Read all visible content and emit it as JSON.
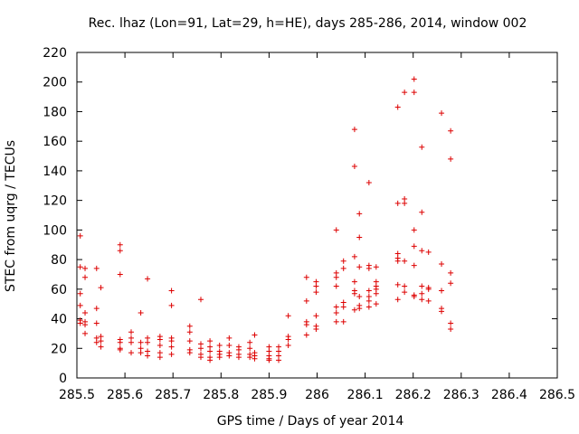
{
  "chart_data": {
    "type": "scatter",
    "title": "Rec. lhaz (Lon=91, Lat=29, h=HE), days 285-286, 2014, window 002",
    "xlabel": "GPS time / Days of year 2014",
    "ylabel": "STEC from uqrg / TECUs",
    "xlim": [
      285.5,
      286.5
    ],
    "ylim": [
      0,
      220
    ],
    "x_ticks": [
      "285.5",
      "285.6",
      "285.7",
      "285.8",
      "285.9",
      "286",
      "286.1",
      "286.2",
      "286.3",
      "286.4",
      "286.5"
    ],
    "y_ticks": [
      "0",
      "20",
      "40",
      "60",
      "80",
      "100",
      "120",
      "140",
      "160",
      "180",
      "200",
      "220"
    ],
    "grid": false,
    "legend": "none",
    "marker": "plus",
    "color": "#dd0000",
    "series": [
      {
        "points": [
          [
            285.507,
            96
          ],
          [
            285.507,
            75
          ],
          [
            285.507,
            57
          ],
          [
            285.507,
            49
          ],
          [
            285.507,
            39
          ],
          [
            285.507,
            37
          ],
          [
            285.517,
            74
          ],
          [
            285.517,
            68
          ],
          [
            285.517,
            44
          ],
          [
            285.517,
            38
          ],
          [
            285.517,
            36
          ],
          [
            285.517,
            30
          ],
          [
            285.541,
            74
          ],
          [
            285.541,
            47
          ],
          [
            285.541,
            37
          ],
          [
            285.541,
            27
          ],
          [
            285.541,
            24
          ],
          [
            285.55,
            61
          ],
          [
            285.55,
            28
          ],
          [
            285.55,
            25
          ],
          [
            285.55,
            21
          ],
          [
            285.59,
            90
          ],
          [
            285.59,
            86
          ],
          [
            285.59,
            70
          ],
          [
            285.59,
            26
          ],
          [
            285.59,
            24
          ],
          [
            285.59,
            20
          ],
          [
            285.59,
            19
          ],
          [
            285.613,
            31
          ],
          [
            285.613,
            27
          ],
          [
            285.613,
            24
          ],
          [
            285.613,
            17
          ],
          [
            285.633,
            44
          ],
          [
            285.633,
            24
          ],
          [
            285.633,
            20
          ],
          [
            285.633,
            17
          ],
          [
            285.647,
            67
          ],
          [
            285.647,
            27
          ],
          [
            285.647,
            24
          ],
          [
            285.647,
            18
          ],
          [
            285.647,
            15
          ],
          [
            285.673,
            28
          ],
          [
            285.673,
            26
          ],
          [
            285.673,
            22
          ],
          [
            285.673,
            17
          ],
          [
            285.673,
            14
          ],
          [
            285.697,
            59
          ],
          [
            285.697,
            49
          ],
          [
            285.697,
            27
          ],
          [
            285.697,
            25
          ],
          [
            285.697,
            21
          ],
          [
            285.697,
            16
          ],
          [
            285.735,
            35
          ],
          [
            285.735,
            31
          ],
          [
            285.735,
            25
          ],
          [
            285.735,
            19
          ],
          [
            285.735,
            17
          ],
          [
            285.758,
            53
          ],
          [
            285.758,
            23
          ],
          [
            285.758,
            20
          ],
          [
            285.758,
            16
          ],
          [
            285.758,
            14
          ],
          [
            285.777,
            25
          ],
          [
            285.777,
            21
          ],
          [
            285.777,
            18
          ],
          [
            285.777,
            14
          ],
          [
            285.777,
            12
          ],
          [
            285.797,
            22
          ],
          [
            285.797,
            18
          ],
          [
            285.797,
            16
          ],
          [
            285.797,
            14
          ],
          [
            285.817,
            27
          ],
          [
            285.817,
            22
          ],
          [
            285.817,
            17
          ],
          [
            285.817,
            15
          ],
          [
            285.837,
            21
          ],
          [
            285.837,
            19
          ],
          [
            285.837,
            16
          ],
          [
            285.837,
            14
          ],
          [
            285.86,
            24
          ],
          [
            285.86,
            20
          ],
          [
            285.86,
            16
          ],
          [
            285.86,
            14
          ],
          [
            285.87,
            29
          ],
          [
            285.87,
            17
          ],
          [
            285.87,
            15
          ],
          [
            285.87,
            13
          ],
          [
            285.9,
            21
          ],
          [
            285.9,
            18
          ],
          [
            285.9,
            15
          ],
          [
            285.9,
            13
          ],
          [
            285.9,
            12
          ],
          [
            285.92,
            21
          ],
          [
            285.92,
            18
          ],
          [
            285.92,
            15
          ],
          [
            285.92,
            12
          ],
          [
            285.94,
            42
          ],
          [
            285.94,
            28
          ],
          [
            285.94,
            26
          ],
          [
            285.94,
            22
          ],
          [
            285.978,
            68
          ],
          [
            285.978,
            52
          ],
          [
            285.978,
            38
          ],
          [
            285.978,
            36
          ],
          [
            285.978,
            29
          ],
          [
            285.998,
            65
          ],
          [
            285.998,
            62
          ],
          [
            285.998,
            58
          ],
          [
            285.998,
            42
          ],
          [
            285.998,
            35
          ],
          [
            285.998,
            33
          ],
          [
            286.04,
            100
          ],
          [
            286.04,
            71
          ],
          [
            286.04,
            68
          ],
          [
            286.04,
            62
          ],
          [
            286.04,
            48
          ],
          [
            286.04,
            44
          ],
          [
            286.04,
            38
          ],
          [
            286.055,
            79
          ],
          [
            286.055,
            74
          ],
          [
            286.055,
            51
          ],
          [
            286.055,
            48
          ],
          [
            286.055,
            38
          ],
          [
            286.078,
            168
          ],
          [
            286.078,
            143
          ],
          [
            286.078,
            82
          ],
          [
            286.078,
            65
          ],
          [
            286.078,
            59
          ],
          [
            286.078,
            57
          ],
          [
            286.078,
            46
          ],
          [
            286.088,
            111
          ],
          [
            286.088,
            95
          ],
          [
            286.088,
            75
          ],
          [
            286.088,
            55
          ],
          [
            286.088,
            49
          ],
          [
            286.088,
            47
          ],
          [
            286.108,
            132
          ],
          [
            286.108,
            76
          ],
          [
            286.108,
            74
          ],
          [
            286.108,
            59
          ],
          [
            286.108,
            55
          ],
          [
            286.108,
            52
          ],
          [
            286.108,
            48
          ],
          [
            286.123,
            75
          ],
          [
            286.123,
            65
          ],
          [
            286.123,
            62
          ],
          [
            286.123,
            60
          ],
          [
            286.123,
            57
          ],
          [
            286.123,
            50
          ],
          [
            286.168,
            183
          ],
          [
            286.168,
            118
          ],
          [
            286.168,
            84
          ],
          [
            286.168,
            81
          ],
          [
            286.168,
            79
          ],
          [
            286.168,
            63
          ],
          [
            286.168,
            53
          ],
          [
            286.182,
            193
          ],
          [
            286.182,
            121
          ],
          [
            286.182,
            118
          ],
          [
            286.182,
            79
          ],
          [
            286.182,
            62
          ],
          [
            286.182,
            58
          ],
          [
            286.202,
            202
          ],
          [
            286.202,
            193
          ],
          [
            286.202,
            100
          ],
          [
            286.202,
            89
          ],
          [
            286.202,
            76
          ],
          [
            286.202,
            56
          ],
          [
            286.202,
            55
          ],
          [
            286.218,
            156
          ],
          [
            286.218,
            112
          ],
          [
            286.218,
            86
          ],
          [
            286.218,
            62
          ],
          [
            286.218,
            57
          ],
          [
            286.218,
            53
          ],
          [
            286.232,
            85
          ],
          [
            286.232,
            61
          ],
          [
            286.232,
            60
          ],
          [
            286.232,
            52
          ],
          [
            286.259,
            179
          ],
          [
            286.259,
            77
          ],
          [
            286.259,
            59
          ],
          [
            286.259,
            47
          ],
          [
            286.259,
            45
          ],
          [
            286.278,
            167
          ],
          [
            286.278,
            148
          ],
          [
            286.278,
            71
          ],
          [
            286.278,
            64
          ],
          [
            286.278,
            37
          ],
          [
            286.278,
            33
          ]
        ]
      }
    ]
  }
}
